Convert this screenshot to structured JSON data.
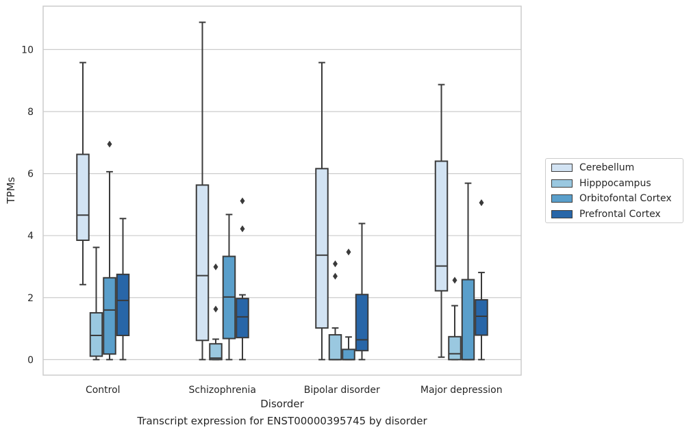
{
  "caption": "Transcript expression for ENST00000395745 by disorder",
  "chart_data": {
    "type": "box",
    "title": "",
    "xlabel": "Disorder",
    "ylabel": "TPMs",
    "ylim": [
      -0.5,
      11.4
    ],
    "yticks": [
      0,
      2,
      4,
      6,
      8,
      10
    ],
    "grid": true,
    "legend_position": "right",
    "categories": [
      "Control",
      "Schizophrenia",
      "Bipolar disorder",
      "Major depression"
    ],
    "series": [
      {
        "name": "Cerebellum",
        "color": "#d2e3f3",
        "boxes": [
          {
            "whislo": 2.42,
            "q1": 3.85,
            "med": 4.66,
            "q3": 6.62,
            "whishi": 9.58,
            "fliers": []
          },
          {
            "whislo": 0.0,
            "q1": 0.62,
            "med": 2.71,
            "q3": 5.63,
            "whishi": 10.88,
            "fliers": []
          },
          {
            "whislo": 0.0,
            "q1": 1.02,
            "med": 3.37,
            "q3": 6.16,
            "whishi": 9.58,
            "fliers": []
          },
          {
            "whislo": 0.08,
            "q1": 2.22,
            "med": 3.02,
            "q3": 6.4,
            "whishi": 8.87,
            "fliers": []
          }
        ]
      },
      {
        "name": "Hipppocampus",
        "color": "#9ac8e0",
        "boxes": [
          {
            "whislo": 0.0,
            "q1": 0.11,
            "med": 0.78,
            "q3": 1.51,
            "whishi": 3.62,
            "fliers": []
          },
          {
            "whislo": 0.0,
            "q1": 0.0,
            "med": 0.05,
            "q3": 0.51,
            "whishi": 0.66,
            "fliers": [
              1.63,
              2.99
            ]
          },
          {
            "whislo": 0.0,
            "q1": 0.0,
            "med": 0.0,
            "q3": 0.8,
            "whishi": 1.02,
            "fliers": [
              2.69,
              3.09
            ]
          },
          {
            "whislo": 0.0,
            "q1": 0.0,
            "med": 0.19,
            "q3": 0.74,
            "whishi": 1.74,
            "fliers": [
              2.56
            ]
          }
        ]
      },
      {
        "name": "Orbitofontal Cortex",
        "color": "#5a9fcb",
        "boxes": [
          {
            "whislo": 0.0,
            "q1": 0.18,
            "med": 1.6,
            "q3": 2.64,
            "whishi": 6.06,
            "fliers": [
              6.95
            ]
          },
          {
            "whislo": 0.0,
            "q1": 0.68,
            "med": 2.02,
            "q3": 3.33,
            "whishi": 4.68,
            "fliers": []
          },
          {
            "whislo": 0.0,
            "q1": 0.0,
            "med": 0.0,
            "q3": 0.33,
            "whishi": 0.73,
            "fliers": [
              3.47
            ]
          },
          {
            "whislo": 0.0,
            "q1": 0.0,
            "med": 0.0,
            "q3": 2.58,
            "whishi": 5.69,
            "fliers": []
          }
        ]
      },
      {
        "name": "Prefrontal Cortex",
        "color": "#2866a8",
        "boxes": [
          {
            "whislo": 0.0,
            "q1": 0.78,
            "med": 1.91,
            "q3": 2.75,
            "whishi": 4.55,
            "fliers": []
          },
          {
            "whislo": 0.0,
            "q1": 0.71,
            "med": 1.38,
            "q3": 1.97,
            "whishi": 2.09,
            "fliers": [
              4.22,
              5.12
            ]
          },
          {
            "whislo": 0.0,
            "q1": 0.29,
            "med": 0.64,
            "q3": 2.1,
            "whishi": 4.39,
            "fliers": []
          },
          {
            "whislo": 0.0,
            "q1": 0.79,
            "med": 1.4,
            "q3": 1.93,
            "whishi": 2.81,
            "fliers": [
              5.06
            ]
          }
        ]
      }
    ]
  }
}
